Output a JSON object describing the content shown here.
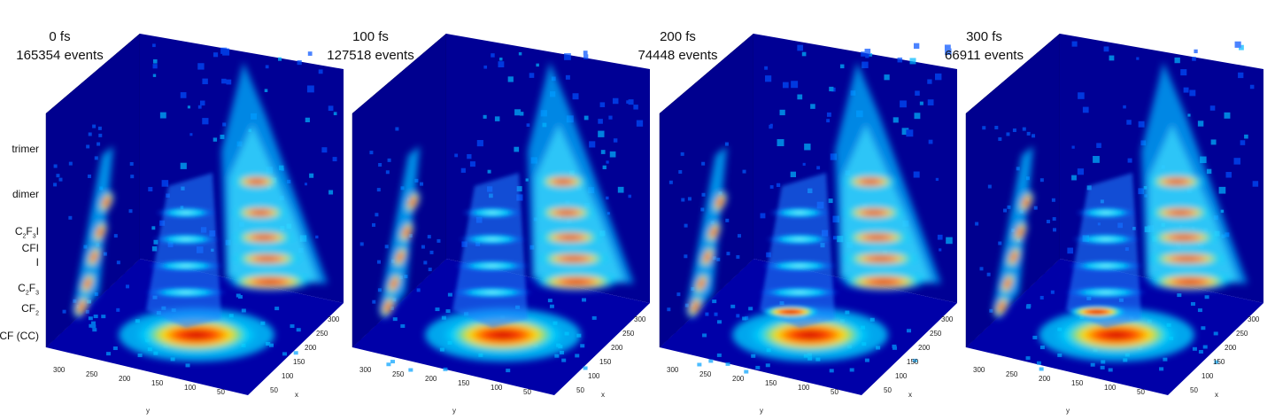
{
  "panels": [
    {
      "time": "0 fs",
      "events": "165354 events"
    },
    {
      "time": "100 fs",
      "events": "127518 events"
    },
    {
      "time": "200 fs",
      "events": "74448 events"
    },
    {
      "time": "300 fs",
      "events": "66911 events"
    }
  ],
  "species_labels": [
    {
      "text": "trimer",
      "sub": []
    },
    {
      "text": "dimer",
      "sub": []
    },
    {
      "text": "C2F3I",
      "parts": [
        "C",
        "2",
        "F",
        "3",
        "I"
      ]
    },
    {
      "text": "CFI",
      "parts": [
        "CFI"
      ]
    },
    {
      "text": "I",
      "parts": [
        "I"
      ]
    },
    {
      "text": "C2F3",
      "parts": [
        "C",
        "2",
        "F",
        "3"
      ]
    },
    {
      "text": "CF2",
      "parts": [
        "CF",
        "2"
      ]
    },
    {
      "text": "CF (CC)",
      "parts": [
        "CF (CC)"
      ]
    }
  ],
  "y_axis": {
    "label": "y",
    "ticks": [
      "300",
      "250",
      "200",
      "150",
      "100",
      "50"
    ]
  },
  "x_axis": {
    "label": "x",
    "ticks": [
      "50",
      "100",
      "150",
      "200",
      "250",
      "300"
    ]
  },
  "colors": {
    "background": "#00008f",
    "low": "#0000c8",
    "mid": "#00d4ff",
    "high": "#ffe000",
    "peak": "#c80000"
  }
}
